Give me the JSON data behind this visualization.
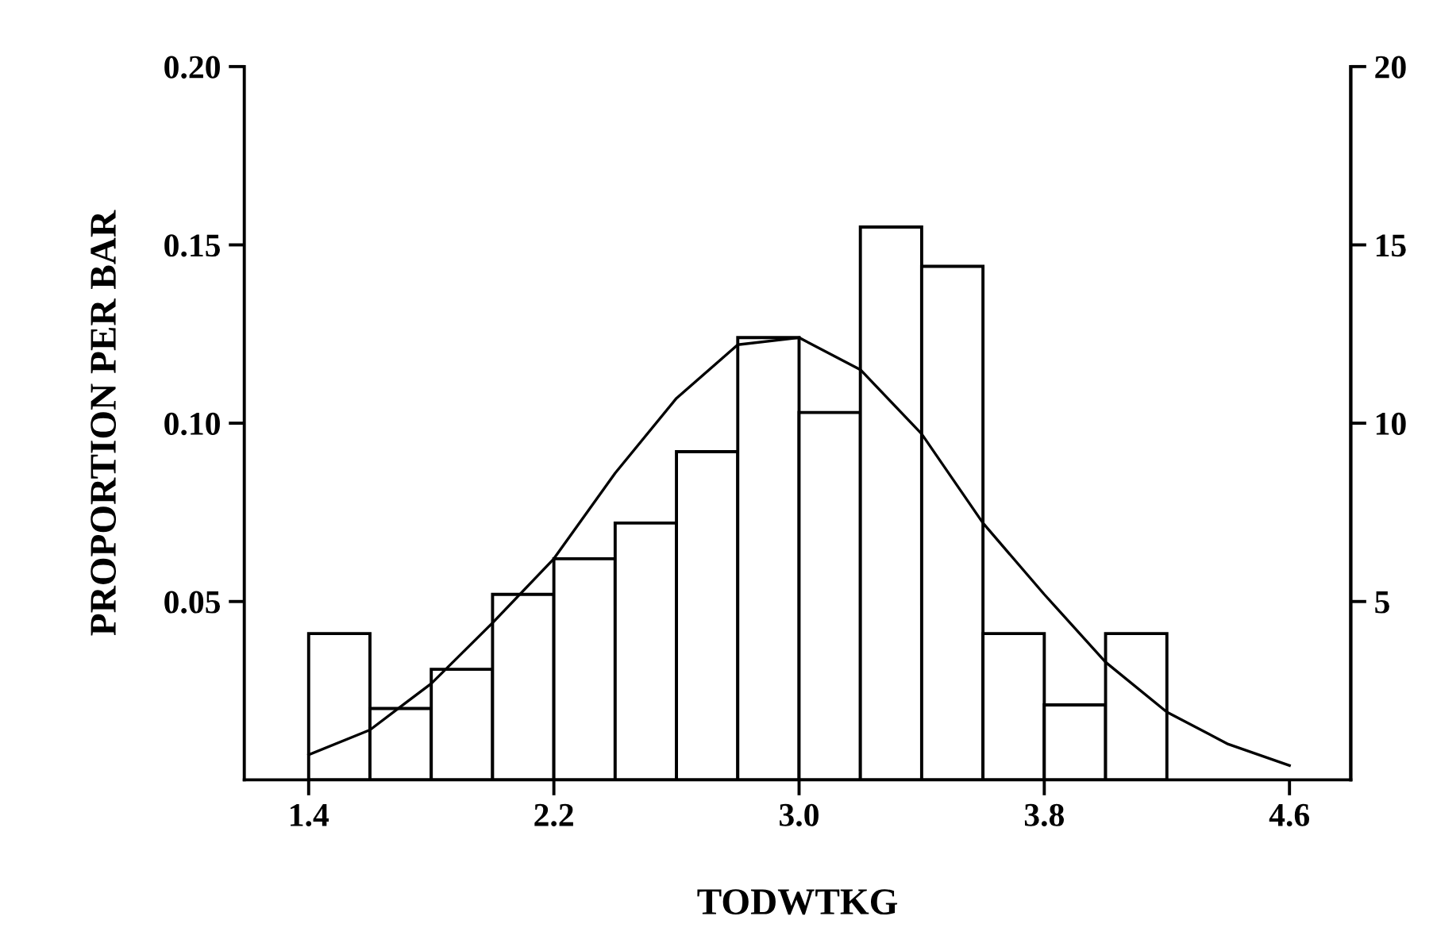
{
  "chart_data": {
    "type": "histogram",
    "xlabel": "TODWTKG",
    "ylabel": "PROPORTION PER BAR",
    "bins": [
      1.4,
      1.6,
      1.8,
      2.0,
      2.2,
      2.4,
      2.6,
      2.8,
      3.0,
      3.2,
      3.4,
      3.6,
      3.8,
      4.0,
      4.2
    ],
    "series": [
      {
        "color": "#000000",
        "values": [
          0.041,
          0.02,
          0.031,
          0.052,
          0.062,
          0.072,
          0.092,
          0.124,
          0.103,
          0.155,
          0.144,
          0.041,
          0.021,
          0.041
        ]
      },
      {
        "type": "line",
        "color": "#000000",
        "x": [
          1.4,
          1.6,
          1.8,
          2.0,
          2.2,
          2.4,
          2.6,
          2.8,
          3.0,
          3.2,
          3.4,
          3.6,
          3.8,
          4.0,
          4.2,
          4.4,
          4.6
        ],
        "values": [
          0.007,
          0.014,
          0.027,
          0.044,
          0.062,
          0.086,
          0.107,
          0.122,
          0.124,
          0.115,
          0.097,
          0.072,
          0.052,
          0.033,
          0.019,
          0.01,
          0.004
        ]
      }
    ],
    "xlim": [
      1.19,
      4.8
    ],
    "xticks": [
      1.4,
      2.2,
      {
        "value": 3.0,
        "label": "3.0"
      },
      3.8,
      4.6
    ],
    "ylim": [
      0,
      0.2
    ],
    "yticks": [
      0.05,
      {
        "value": 0.1,
        "label": "0.10"
      },
      0.15,
      {
        "value": 0.2,
        "label": "0.20"
      }
    ],
    "y2lim": [
      0,
      20
    ],
    "y2ticks": [
      5,
      10,
      15,
      20
    ],
    "grid": false,
    "legend": false
  }
}
